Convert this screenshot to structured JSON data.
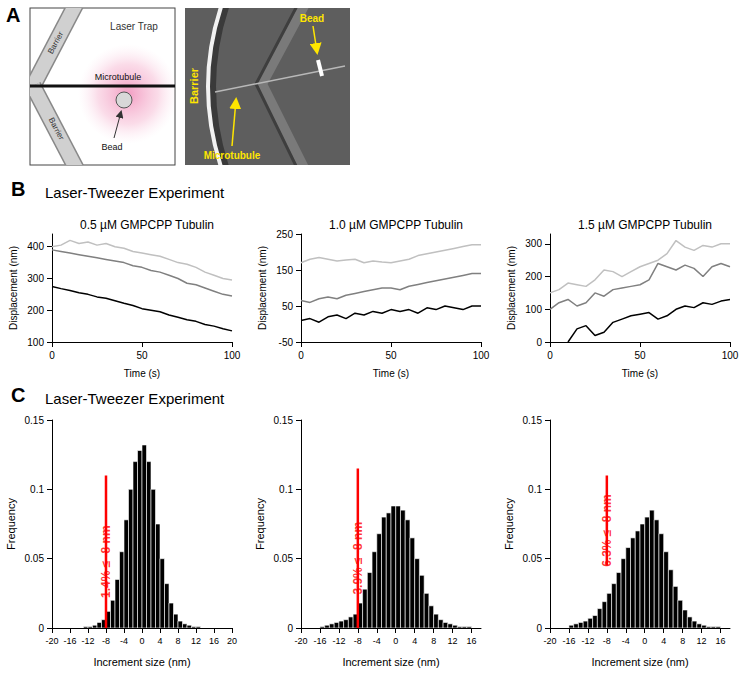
{
  "panels": [
    {
      "letter": "A",
      "schematic": {
        "barrier_labels": [
          "Barrier",
          "Barrier"
        ],
        "trap_label": "Laser Trap",
        "microtubule_label": "Microtubule",
        "bead_label": "Bead"
      },
      "micrograph": {
        "barrier_label": "Barrier",
        "microtubule_label": "Microtubule",
        "bead_label": "Bead"
      }
    },
    {
      "letter": "B",
      "title": "Laser-Tweezer Experiment"
    },
    {
      "letter": "C",
      "title": "Laser-Tweezer Experiment"
    }
  ],
  "chart_data": [
    {
      "type": "line",
      "title": "0.5 µM GMPCPP Tubulin",
      "xlabel": "Time (s)",
      "ylabel": "Displacement (nm)",
      "x": [
        0,
        5,
        10,
        15,
        20,
        25,
        30,
        35,
        40,
        45,
        50,
        55,
        60,
        65,
        70,
        75,
        80,
        85,
        90,
        95,
        100
      ],
      "xlim": [
        0,
        100
      ],
      "xticks": [
        0,
        50,
        100
      ],
      "ylim": [
        100,
        440
      ],
      "yticks": [
        100,
        200,
        300,
        400
      ],
      "grid": false,
      "series": [
        {
          "color": "#c0c0c0",
          "values": [
            400,
            405,
            420,
            410,
            415,
            405,
            410,
            400,
            395,
            385,
            380,
            375,
            370,
            360,
            350,
            345,
            335,
            320,
            310,
            300,
            295
          ]
        },
        {
          "color": "#808080",
          "values": [
            390,
            385,
            380,
            375,
            370,
            365,
            360,
            355,
            350,
            340,
            335,
            325,
            320,
            310,
            300,
            285,
            280,
            270,
            260,
            250,
            245
          ]
        },
        {
          "color": "#000000",
          "values": [
            275,
            268,
            262,
            255,
            250,
            242,
            238,
            230,
            222,
            215,
            205,
            200,
            195,
            185,
            178,
            170,
            165,
            155,
            150,
            142,
            135
          ]
        }
      ]
    },
    {
      "type": "line",
      "title": "1.0 µM GMPCPP Tubulin",
      "xlabel": "Time (s)",
      "ylabel": "Displacement (nm)",
      "x": [
        0,
        5,
        10,
        15,
        20,
        25,
        30,
        35,
        40,
        45,
        50,
        55,
        60,
        65,
        70,
        75,
        80,
        85,
        90,
        95,
        100
      ],
      "xlim": [
        0,
        100
      ],
      "xticks": [
        0,
        50,
        100
      ],
      "ylim": [
        -50,
        250
      ],
      "yticks": [
        -50,
        50,
        150,
        250
      ],
      "grid": false,
      "series": [
        {
          "color": "#c0c0c0",
          "values": [
            170,
            180,
            185,
            180,
            175,
            178,
            180,
            170,
            175,
            172,
            170,
            175,
            180,
            190,
            195,
            200,
            205,
            210,
            215,
            220,
            220
          ]
        },
        {
          "color": "#808080",
          "values": [
            65,
            60,
            70,
            75,
            70,
            80,
            85,
            90,
            95,
            100,
            100,
            95,
            105,
            110,
            115,
            120,
            125,
            130,
            135,
            140,
            140
          ]
        },
        {
          "color": "#000000",
          "values": [
            10,
            15,
            5,
            20,
            25,
            15,
            30,
            25,
            35,
            30,
            40,
            35,
            40,
            30,
            45,
            40,
            50,
            45,
            40,
            50,
            50
          ]
        }
      ]
    },
    {
      "type": "line",
      "title": "1.5 µM GMPCPP Tubulin",
      "xlabel": "Time (s)",
      "ylabel": "Displacement (nm)",
      "x": [
        0,
        5,
        10,
        15,
        20,
        25,
        30,
        35,
        40,
        45,
        50,
        55,
        60,
        65,
        70,
        75,
        80,
        85,
        90,
        95,
        100
      ],
      "xlim": [
        0,
        100
      ],
      "xticks": [
        0,
        50,
        100
      ],
      "ylim": [
        0,
        330
      ],
      "yticks": [
        0,
        100,
        200,
        300
      ],
      "grid": false,
      "series": [
        {
          "color": "#c0c0c0",
          "values": [
            150,
            160,
            180,
            175,
            170,
            190,
            220,
            215,
            200,
            215,
            230,
            240,
            250,
            270,
            310,
            290,
            280,
            295,
            290,
            300,
            300
          ]
        },
        {
          "color": "#808080",
          "values": [
            100,
            120,
            130,
            110,
            120,
            150,
            140,
            160,
            165,
            170,
            175,
            190,
            240,
            230,
            220,
            235,
            225,
            200,
            230,
            240,
            230
          ]
        },
        {
          "color": "#000000",
          "values": [
            null,
            null,
            0,
            40,
            50,
            20,
            30,
            60,
            70,
            80,
            85,
            90,
            70,
            80,
            100,
            110,
            105,
            120,
            115,
            125,
            130
          ]
        }
      ]
    },
    {
      "type": "histogram",
      "xlabel": "Increment size (nm)",
      "ylabel": "Frequency",
      "color": "#000000",
      "bins": [
        -13,
        -12,
        -11,
        -10,
        -9,
        -8,
        -7,
        -6,
        -5,
        -4,
        -3,
        -2,
        -1,
        0,
        1,
        2,
        3,
        4,
        5,
        6,
        7,
        8,
        9,
        10,
        11,
        12,
        13
      ],
      "values": [
        0.001,
        0.001,
        0.002,
        0.004,
        0.006,
        0.012,
        0.02,
        0.035,
        0.055,
        0.078,
        0.1,
        0.12,
        0.128,
        0.132,
        0.12,
        0.1,
        0.075,
        0.05,
        0.032,
        0.018,
        0.01,
        0.005,
        0.003,
        0.002,
        0.001,
        0.001
      ],
      "xlim": [
        -20,
        20
      ],
      "xticks": [
        -20,
        -16,
        -12,
        -8,
        -4,
        0,
        4,
        8,
        12,
        16,
        20
      ],
      "ylim": [
        0,
        0.15
      ],
      "yticks": [
        0,
        0.05,
        0.1,
        0.15
      ],
      "grid": false,
      "annotations": [
        {
          "text": "1.4% ≤ -8 nm",
          "x": -8,
          "y": [
            0,
            0.11
          ],
          "color": "#ff0000"
        }
      ]
    },
    {
      "type": "histogram",
      "xlabel": "Increment size (nm)",
      "ylabel": "Frequency",
      "color": "#000000",
      "bins": [
        -16,
        -15,
        -14,
        -13,
        -12,
        -11,
        -10,
        -9,
        -8,
        -7,
        -6,
        -5,
        -4,
        -3,
        -2,
        -1,
        0,
        1,
        2,
        3,
        4,
        5,
        6,
        7,
        8,
        9,
        10,
        11,
        12,
        13,
        14,
        15,
        16
      ],
      "values": [
        0.001,
        0.002,
        0.003,
        0.004,
        0.005,
        0.006,
        0.008,
        0.01,
        0.018,
        0.028,
        0.04,
        0.055,
        0.068,
        0.08,
        0.083,
        0.088,
        0.088,
        0.085,
        0.078,
        0.065,
        0.05,
        0.038,
        0.025,
        0.016,
        0.01,
        0.006,
        0.004,
        0.003,
        0.002,
        0.001,
        0.001,
        0.001
      ],
      "xlim": [
        -20,
        18
      ],
      "xticks": [
        -20,
        -16,
        -12,
        -8,
        -4,
        0,
        4,
        8,
        12,
        16
      ],
      "ylim": [
        0,
        0.15
      ],
      "yticks": [
        0,
        0.05,
        0.1,
        0.15
      ],
      "grid": false,
      "annotations": [
        {
          "text": "3.9% ≤ -8 nm",
          "x": -8,
          "y": [
            0,
            0.115
          ],
          "color": "#ff0000"
        }
      ]
    },
    {
      "type": "histogram",
      "xlabel": "Increment size (nm)",
      "ylabel": "Frequency",
      "color": "#000000",
      "bins": [
        -16,
        -15,
        -14,
        -13,
        -12,
        -11,
        -10,
        -9,
        -8,
        -7,
        -6,
        -5,
        -4,
        -3,
        -2,
        -1,
        0,
        1,
        2,
        3,
        4,
        5,
        6,
        7,
        8,
        9,
        10,
        11,
        12,
        13,
        14,
        15,
        16
      ],
      "values": [
        0.002,
        0.003,
        0.004,
        0.005,
        0.007,
        0.009,
        0.014,
        0.019,
        0.025,
        0.032,
        0.04,
        0.05,
        0.058,
        0.065,
        0.07,
        0.075,
        0.08,
        0.085,
        0.078,
        0.068,
        0.055,
        0.042,
        0.03,
        0.02,
        0.013,
        0.008,
        0.005,
        0.003,
        0.002,
        0.001,
        0.001,
        0.001
      ],
      "xlim": [
        -20,
        18
      ],
      "xticks": [
        -20,
        -16,
        -12,
        -8,
        -4,
        0,
        4,
        8,
        12,
        16
      ],
      "ylim": [
        0,
        0.15
      ],
      "yticks": [
        0,
        0.05,
        0.1,
        0.15
      ],
      "grid": false,
      "annotations": [
        {
          "text": "6.3% ≤ -8 nm",
          "x": -8,
          "y": [
            0.045,
            0.11
          ],
          "color": "#ff0000"
        }
      ]
    }
  ]
}
